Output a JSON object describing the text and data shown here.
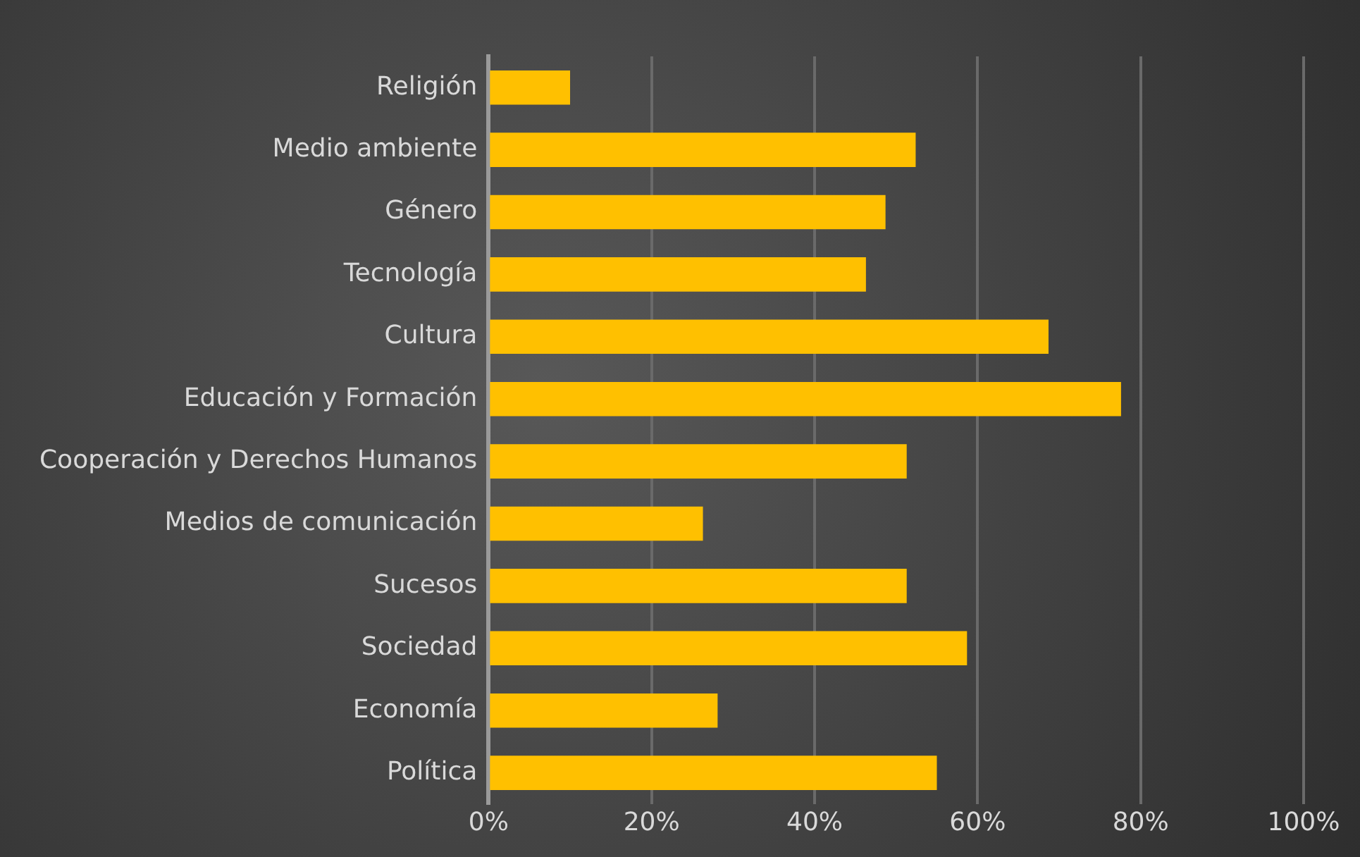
{
  "chart_data": {
    "type": "bar",
    "orientation": "horizontal",
    "categories": [
      "Religión",
      "Medio ambiente",
      "Género",
      "Tecnología",
      "Cultura",
      "Educación y Formación",
      "Cooperación y Derechos Humanos",
      "Medios de comunicación",
      "Sucesos",
      "Sociedad",
      "Economía",
      "Política"
    ],
    "values": [
      10,
      52.4,
      48.7,
      46.3,
      68.7,
      77.6,
      51.3,
      26.3,
      51.3,
      58.7,
      28.1,
      55
    ],
    "color": "#ffc000",
    "xlim": [
      0,
      100
    ],
    "xticks": [
      {
        "value": 0,
        "label": "0%"
      },
      {
        "value": 20,
        "label": "20%"
      },
      {
        "value": 40,
        "label": "40%"
      },
      {
        "value": 60,
        "label": "60%"
      },
      {
        "value": 80,
        "label": "80%"
      },
      {
        "value": 100,
        "label": "100%"
      }
    ],
    "grid": "x",
    "legend": false
  }
}
